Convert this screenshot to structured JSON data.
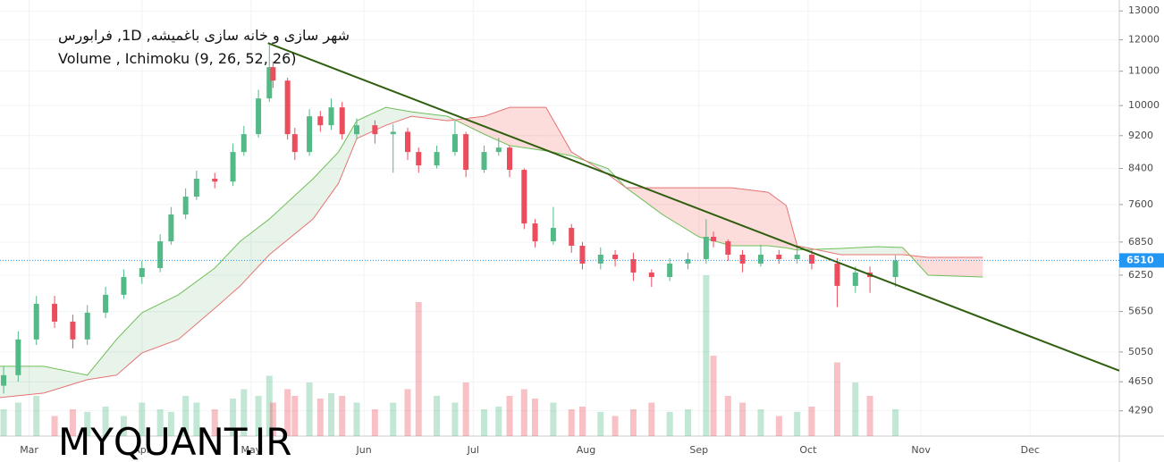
{
  "chart_data": {
    "type": "candlestick",
    "title": "شهر سازی و خانه سازی باغمیشه, 1D, فرابورس",
    "subtitle": "Volume , Ichimoku (9, 26, 52, 26)",
    "watermark": "MYQUANT.IR",
    "log_scale": true,
    "grid": true,
    "ylim": [
      4000,
      13400
    ],
    "yticks": [
      4290,
      4650,
      5050,
      5650,
      6250,
      6850,
      7600,
      8400,
      9200,
      10000,
      11000,
      12000,
      13000
    ],
    "xlim": [
      -8,
      299.5
    ],
    "xticks": [
      {
        "value": 0,
        "label": "Mar"
      },
      {
        "value": 31,
        "label": "Apr"
      },
      {
        "value": 61,
        "label": "May"
      },
      {
        "value": 92,
        "label": "Jun"
      },
      {
        "value": 122,
        "label": "Jul"
      },
      {
        "value": 153,
        "label": "Aug"
      },
      {
        "value": 184,
        "label": "Sep"
      },
      {
        "value": 214,
        "label": "Oct"
      },
      {
        "value": 245,
        "label": "Nov"
      },
      {
        "value": 275,
        "label": "Dec"
      }
    ],
    "up_color": "#53b987",
    "down_color": "#eb4d5c",
    "x": [
      -7,
      -3,
      2,
      7,
      12,
      16,
      21,
      26,
      31,
      36,
      39,
      43,
      46,
      51,
      56,
      59,
      63,
      66,
      67,
      71,
      73,
      77,
      80,
      83,
      86,
      90,
      95,
      100,
      104,
      107,
      112,
      117,
      120,
      125,
      129,
      132,
      136,
      139,
      144,
      149,
      152,
      157,
      161,
      166,
      171,
      176,
      181,
      186,
      188,
      192,
      196,
      201,
      206,
      211,
      215,
      222,
      227,
      231,
      238
    ],
    "open": [
      4600,
      4736,
      5229,
      5772,
      5494,
      5229,
      5632,
      5918,
      6217,
      6373,
      6864,
      7393,
      7769,
      8164,
      8100,
      8792,
      9238,
      10200,
      11123,
      10717,
      9238,
      8792,
      9707,
      9469,
      9950,
      9238,
      9469,
      9238,
      9300,
      8792,
      8472,
      8792,
      9238,
      8368,
      8792,
      8901,
      8368,
      7212,
      6864,
      7124,
      6780,
      6453,
      6614,
      6533,
      6295,
      6217,
      6453,
      6533,
      6950,
      6864,
      6614,
      6453,
      6614,
      6533,
      6614,
      6453,
      6066,
      6295,
      6217
    ],
    "high": [
      4850,
      5350,
      5900,
      5900,
      5600,
      5750,
      6050,
      6350,
      6500,
      7000,
      7550,
      7950,
      8350,
      8300,
      9000,
      9450,
      10450,
      11900,
      11300,
      10800,
      9400,
      9900,
      9850,
      10200,
      10100,
      9650,
      9600,
      9500,
      9400,
      8900,
      8950,
      9600,
      9300,
      8950,
      9150,
      8950,
      8400,
      7300,
      7550,
      7200,
      6850,
      6750,
      6700,
      6650,
      6350,
      6550,
      6650,
      7300,
      7050,
      6900,
      6700,
      6800,
      6700,
      6750,
      6700,
      6550,
      6400,
      6400,
      6600
    ],
    "low": [
      4500,
      4650,
      5150,
      5400,
      5100,
      5150,
      5550,
      5850,
      6100,
      6300,
      6800,
      7300,
      7700,
      7950,
      8000,
      8700,
      9150,
      10100,
      10500,
      9100,
      8600,
      8700,
      9300,
      9350,
      9100,
      9100,
      9000,
      8300,
      8600,
      8300,
      8400,
      8700,
      8200,
      8300,
      8700,
      8200,
      7100,
      6750,
      6800,
      6650,
      6350,
      6350,
      6400,
      6150,
      6050,
      6150,
      6350,
      6450,
      6750,
      6500,
      6300,
      6400,
      6450,
      6450,
      6350,
      5720,
      5950,
      5950,
      6050
    ],
    "close": [
      4736,
      5229,
      5772,
      5494,
      5229,
      5632,
      5918,
      6217,
      6373,
      6864,
      7393,
      7769,
      8164,
      8100,
      8792,
      9238,
      10200,
      11123,
      10717,
      9238,
      8792,
      9707,
      9469,
      9950,
      9238,
      9469,
      9238,
      9300,
      8792,
      8472,
      8792,
      9238,
      8368,
      8792,
      8901,
      8368,
      7212,
      6864,
      7124,
      6780,
      6453,
      6614,
      6533,
      6295,
      6217,
      6453,
      6533,
      6950,
      6864,
      6614,
      6453,
      6614,
      6533,
      6614,
      6453,
      6066,
      6295,
      6217,
      6510
    ],
    "volume": [
      20,
      25,
      30,
      15,
      20,
      18,
      22,
      15,
      25,
      20,
      18,
      30,
      25,
      20,
      28,
      35,
      30,
      45,
      25,
      35,
      30,
      40,
      28,
      32,
      30,
      25,
      20,
      25,
      35,
      100,
      30,
      25,
      40,
      20,
      22,
      30,
      35,
      28,
      25,
      20,
      22,
      18,
      15,
      20,
      25,
      18,
      20,
      120,
      60,
      30,
      25,
      20,
      15,
      18,
      22,
      55,
      40,
      30,
      20
    ],
    "vlim": [
      0,
      100
    ],
    "cloud": {
      "x": [
        -8,
        4,
        16,
        24,
        31,
        41,
        51,
        58,
        66,
        78,
        85,
        90,
        98,
        105,
        115,
        125,
        132,
        142,
        149,
        159,
        164,
        174,
        184,
        193,
        203,
        208,
        211,
        223,
        233,
        240,
        247,
        262
      ],
      "span_a": {
        "color": "#6fbf5a",
        "values": [
          4854,
          4854,
          4736,
          5229,
          5632,
          5918,
          6373,
          6864,
          7302,
          8164,
          8792,
          9588,
          9950,
          9828,
          9707,
          9238,
          8950,
          8820,
          8700,
          8400,
          7963,
          7393,
          6950,
          6780,
          6780,
          6740,
          6700,
          6730,
          6763,
          6747,
          6248,
          6217
        ]
      },
      "span_b": {
        "color": "#e57373",
        "values": [
          4451,
          4507,
          4677,
          4736,
          5037,
          5229,
          5700,
          6066,
          6614,
          7302,
          8062,
          9125,
          9469,
          9707,
          9588,
          9707,
          9950,
          9950,
          8792,
          8264,
          7963,
          7963,
          7963,
          7963,
          7865,
          7579,
          6780,
          6614,
          6614,
          6614,
          6565,
          6565
        ]
      }
    },
    "trendline": {
      "color": "#2e5e0e",
      "x": [
        65.6,
        299.5
      ],
      "values": [
        11891,
        4795
      ]
    },
    "last_price": 6510,
    "last_price_color": "#2196f3"
  }
}
